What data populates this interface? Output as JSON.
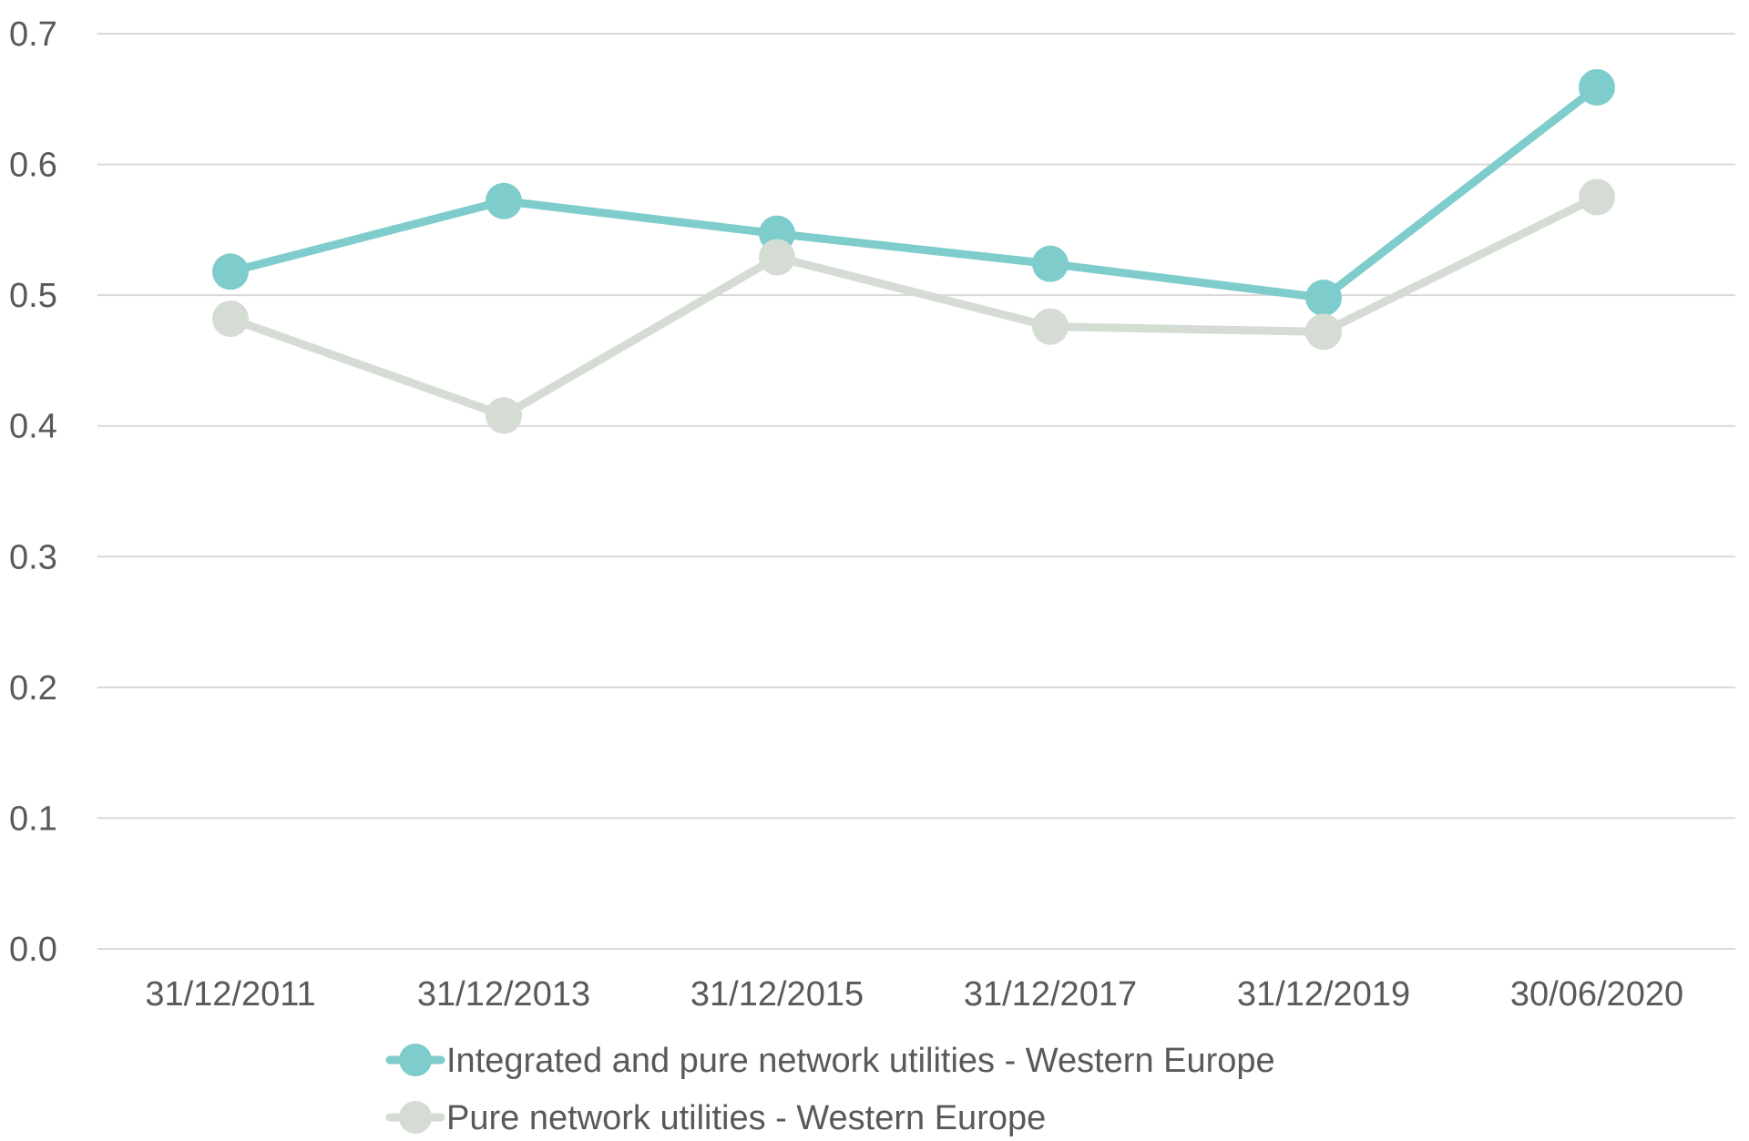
{
  "chart_data": {
    "type": "line",
    "title": "",
    "xlabel": "",
    "ylabel": "",
    "categories": [
      "31/12/2011",
      "31/12/2013",
      "31/12/2015",
      "31/12/2017",
      "31/12/2019",
      "30/06/2020"
    ],
    "ylim": [
      0.0,
      0.7
    ],
    "yticks": [
      "0.0",
      "0.1",
      "0.2",
      "0.3",
      "0.4",
      "0.5",
      "0.6",
      "0.7"
    ],
    "grid": true,
    "legend_position": "bottom",
    "series": [
      {
        "name": "Integrated and pure network utilities - Western Europe",
        "color": "#7ecccb",
        "values": [
          0.518,
          0.572,
          0.547,
          0.524,
          0.498,
          0.659
        ]
      },
      {
        "name": "Pure network utilities - Western Europe",
        "color": "#d4dcd4",
        "values": [
          0.482,
          0.408,
          0.529,
          0.476,
          0.472,
          0.575
        ]
      }
    ]
  }
}
